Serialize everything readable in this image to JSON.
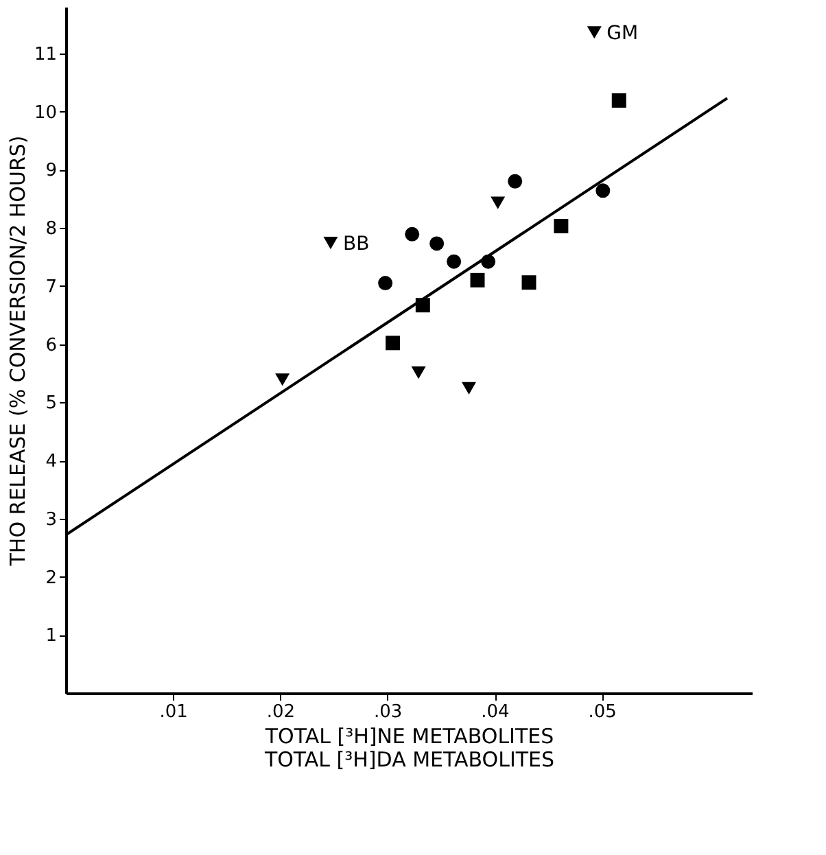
{
  "chart_data": {
    "type": "scatter",
    "xlabel": "TOTAL [³H]NE METABOLITES\nTOTAL [³H]DA METABOLITES",
    "ylabel": "THO RELEASE  (% CONVERSION/2 HOURS)",
    "xlim": [
      0,
      0.064
    ],
    "ylim": [
      0,
      11.8
    ],
    "xticks": [
      {
        "value": 0.01,
        "label": ".01"
      },
      {
        "value": 0.02,
        "label": ".02"
      },
      {
        "value": 0.03,
        "label": ".03"
      },
      {
        "value": 0.04,
        "label": ".04"
      },
      {
        "value": 0.05,
        "label": ".05"
      }
    ],
    "yticks": [
      1,
      2,
      3,
      4,
      5,
      6,
      7,
      8,
      9,
      10,
      11
    ],
    "grid": false,
    "series": [
      {
        "marker": "triangle",
        "color": "#000000",
        "x": [
          0.0493,
          0.0247,
          0.0403,
          0.0202,
          0.0329,
          0.0376
        ],
        "values": [
          11.36,
          7.74,
          8.43,
          5.39,
          5.51,
          5.24
        ]
      },
      {
        "marker": "circle",
        "color": "#000000",
        "x": [
          0.0419,
          0.0501,
          0.0323,
          0.0346,
          0.0362,
          0.0394,
          0.0298
        ],
        "values": [
          8.8,
          8.64,
          7.89,
          7.73,
          7.42,
          7.42,
          7.05
        ]
      },
      {
        "marker": "square",
        "color": "#000000",
        "x": [
          0.0516,
          0.0462,
          0.0384,
          0.0432,
          0.0333,
          0.0305
        ],
        "values": [
          10.19,
          8.03,
          7.1,
          7.06,
          6.67,
          6.02
        ]
      },
      {
        "type": "line",
        "line_style": "solid",
        "color": "#000000",
        "x": [
          0,
          0.0617
        ],
        "values": [
          2.72,
          10.23
        ]
      }
    ],
    "annotations": [
      {
        "text": "GM",
        "x": 0.0493,
        "y": 11.36
      },
      {
        "text": "BB",
        "x": 0.0247,
        "y": 7.74
      }
    ]
  }
}
